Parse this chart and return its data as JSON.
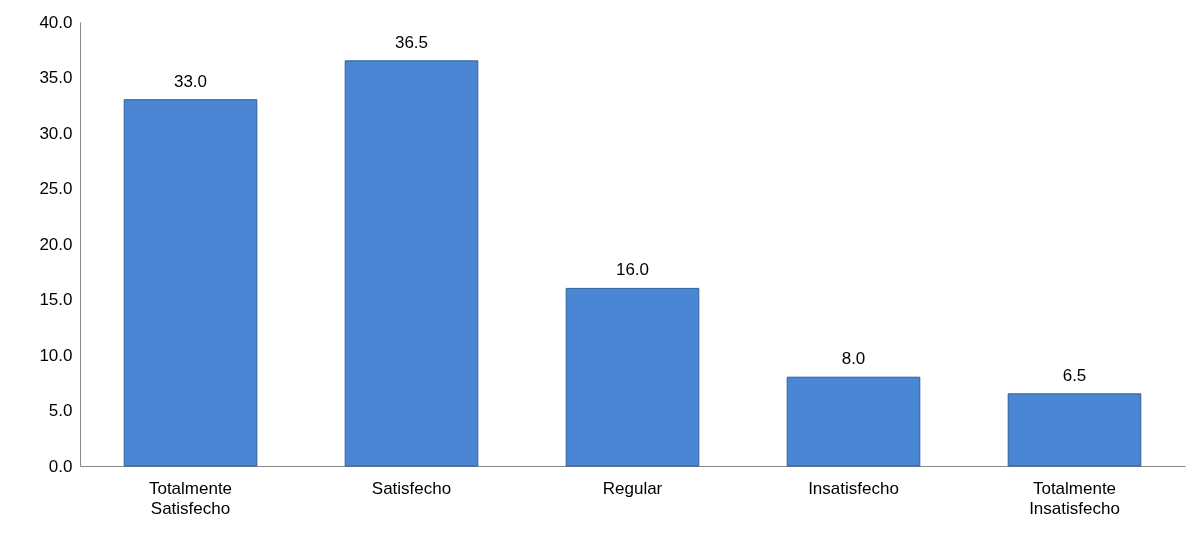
{
  "chart_data": {
    "type": "bar",
    "categories": [
      "Totalmente Satisfecho",
      "Satisfecho",
      "Regular",
      "Insatisfecho",
      "Totalmente Insatisfecho"
    ],
    "values": [
      33.0,
      36.5,
      16.0,
      8.0,
      6.5
    ],
    "value_labels": [
      "33.0",
      "36.5",
      "16.0",
      "8.0",
      "6.5"
    ],
    "color": "#4a86d4",
    "ylim": [
      0,
      40
    ],
    "yticks": [
      {
        "value": 0,
        "label": "0.0"
      },
      {
        "value": 5,
        "label": "5.0"
      },
      {
        "value": 10,
        "label": "10.0"
      },
      {
        "value": 15,
        "label": "15.0"
      },
      {
        "value": 20,
        "label": "20.0"
      },
      {
        "value": 25,
        "label": "25.0"
      },
      {
        "value": 30,
        "label": "30.0"
      },
      {
        "value": 35,
        "label": "35.0"
      },
      {
        "value": 40,
        "label": "40.0"
      }
    ],
    "grid": false
  }
}
